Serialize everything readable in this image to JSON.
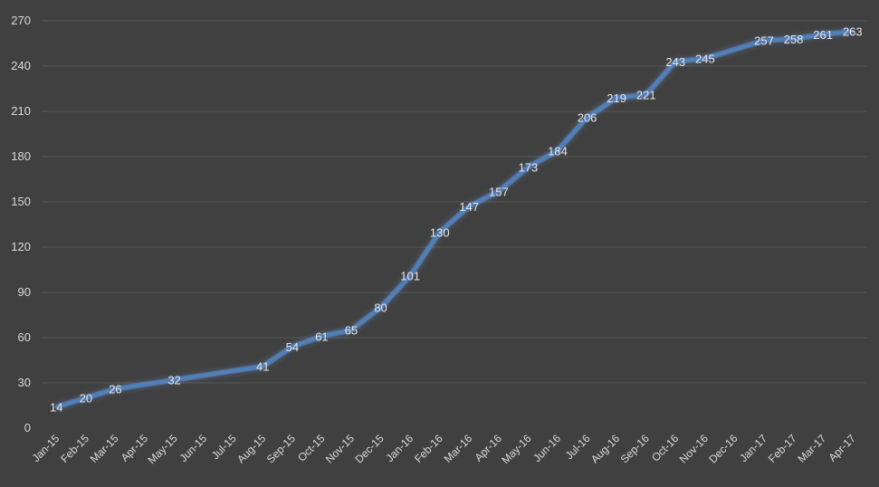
{
  "colors": {
    "background": "#404040",
    "gridline": "#595959",
    "series_line": "#4f81bd",
    "glow": "#6fa8ff",
    "text": "#d9d9d9"
  },
  "chart_data": {
    "type": "line",
    "title": "",
    "xlabel": "",
    "ylabel": "",
    "ylim": [
      0,
      270
    ],
    "yticks": [
      0,
      30,
      60,
      90,
      120,
      150,
      180,
      210,
      240,
      270
    ],
    "grid": true,
    "legend": "none",
    "categories": [
      "Jan-15",
      "Feb-15",
      "Mar-15",
      "Apr-15",
      "May-15",
      "Jun-15",
      "Jul-15",
      "Aug-15",
      "Sep-15",
      "Oct-15",
      "Nov-15",
      "Dec-15",
      "Jan-16",
      "Feb-16",
      "Mar-16",
      "Apr-16",
      "May-16",
      "Jun-16",
      "Jul-16",
      "Aug-16",
      "Sep-16",
      "Oct-16",
      "Nov-16",
      "Dec-16",
      "Jan-17",
      "Feb-17",
      "Mar-17",
      "Apr-17"
    ],
    "series": [
      {
        "values": [
          14,
          20,
          26,
          29,
          32,
          35,
          38,
          41,
          54,
          61,
          65,
          80,
          101,
          130,
          147,
          157,
          173,
          184,
          206,
          219,
          221,
          243,
          245,
          251,
          257,
          258,
          261,
          263
        ],
        "labels": [
          "14",
          "20",
          "26",
          "",
          "32",
          "",
          "",
          "41",
          "54",
          "61",
          "65",
          "80",
          "101",
          "130",
          "147",
          "157",
          "173",
          "184",
          "206",
          "219",
          "221",
          "243",
          "245",
          "",
          "257",
          "258",
          "261",
          "263"
        ]
      }
    ]
  }
}
